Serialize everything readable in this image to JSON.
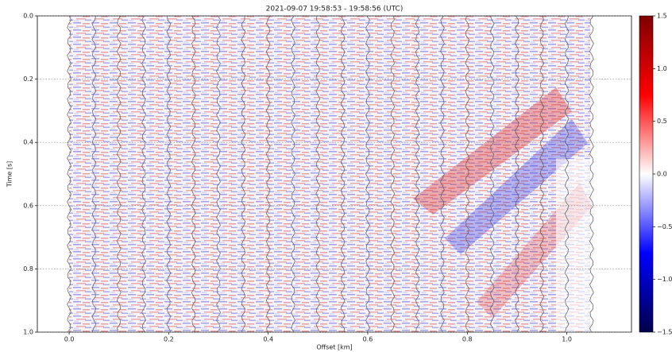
{
  "chart_data": {
    "type": "seismic",
    "title": "2021-09-07 19:58:53 - 19:58:56 (UTC)",
    "x_label": "Offset [km]",
    "y_label": "Time [s]",
    "xlim": [
      -0.064,
      1.13
    ],
    "ylim": [
      0,
      1
    ],
    "y_inverted": true,
    "xticks": [
      {
        "value": 0,
        "label": "0.0"
      },
      {
        "value": 0.2,
        "label": "0.2"
      },
      {
        "value": 0.4,
        "label": "0.4"
      },
      {
        "value": 0.6,
        "label": "0.6"
      },
      {
        "value": 0.8,
        "label": "0.8"
      },
      {
        "value": 1,
        "label": "1.0"
      }
    ],
    "yticks": [
      {
        "value": 0,
        "label": "0.0"
      },
      {
        "value": 0.2,
        "label": "0.2"
      },
      {
        "value": 0.4,
        "label": "0.4"
      },
      {
        "value": 0.6,
        "label": "0.6"
      },
      {
        "value": 0.8,
        "label": "0.8"
      },
      {
        "value": 1,
        "label": "1.0"
      }
    ],
    "grid": true,
    "trace_offsets": [
      0,
      0.05,
      0.1,
      0.15,
      0.2,
      0.25,
      0.3,
      0.35,
      0.4,
      0.45,
      0.5,
      0.55,
      0.6,
      0.65,
      0.7,
      0.75,
      0.8,
      0.85,
      0.9,
      0.95,
      1,
      1.05
    ],
    "trace_color": "#555555",
    "colormap": "seismic",
    "clim": [
      -1.5,
      1.5
    ],
    "cticks": [
      {
        "value": 1.5,
        "label": "1.5"
      },
      {
        "value": 1,
        "label": "1.0"
      },
      {
        "value": 0.5,
        "label": "0.5"
      },
      {
        "value": 0,
        "label": "0.0"
      },
      {
        "value": -0.5,
        "label": "−0.5"
      },
      {
        "value": -1,
        "label": "−1.0"
      },
      {
        "value": -1.5,
        "label": "−1.5"
      }
    ]
  }
}
